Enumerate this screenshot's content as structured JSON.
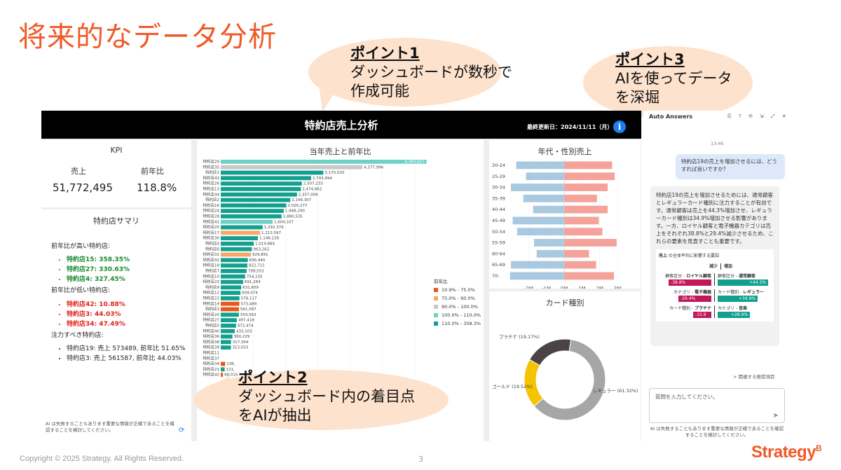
{
  "slide": {
    "title": "将来的なデータ分析",
    "footer_copyright": "Copyright © 2025 Strategy. All Rights Reserved.",
    "page_number": "3",
    "logo_text": "Strategy",
    "logo_mark": "B"
  },
  "callouts": [
    {
      "title": "ポイント1",
      "lines": [
        "ダッシュボードが数秒で",
        "作成可能"
      ]
    },
    {
      "title": "ポイント2",
      "lines": [
        "ダッシュボード内の着目点",
        "をAIが抽出"
      ]
    },
    {
      "title": "ポイント3",
      "lines": [
        "AIを使ってデータ",
        "を深堀"
      ]
    }
  ],
  "dashboard": {
    "title": "特約店売上分析",
    "updated": "最終更新日：2024/11/11（月）",
    "kpi": {
      "title": "KPI",
      "sales_label": "売上",
      "sales_value": "51,772,495",
      "yoy_label": "前年比",
      "yoy_value": "118.8%"
    },
    "summary": {
      "title": "特約店サマリ",
      "high_heading": "前年比が高い特約店:",
      "high_items": [
        "特約店15: 358.35%",
        "特約店27: 330.63%",
        "特約店4: 327.45%"
      ],
      "low_heading": "前年比が低い特約店:",
      "low_items": [
        "特約店42: 10.88%",
        "特約店3: 44.03%",
        "特約店34: 47.49%"
      ],
      "focus_heading": "注力すべき特約店:",
      "focus_items": [
        "特約店19: 売上 573489, 前年比 51.65%",
        "特約店3: 売上 561587, 前年比 44.03%"
      ],
      "disclaimer": "AI は失敗することもあります重要な情報が正確であることを確認することを検討してください。"
    },
    "colors": {
      "red": "#e8581c",
      "orange": "#f5a86a",
      "gray": "#c8c8c8",
      "lightteal": "#6fd1c6",
      "teal": "#13a08e",
      "male": "#a8c9e0",
      "female": "#f4a29a"
    }
  },
  "chart_data": [
    {
      "type": "bar",
      "orientation": "horizontal",
      "title": "当年売上と前年比",
      "legend_title": "前年比",
      "legend": [
        {
          "label": "10.9% - 75.0%",
          "color": "#e8581c"
        },
        {
          "label": "75.0% - 90.0%",
          "color": "#f5a86a"
        },
        {
          "label": "90.0% - 100.0%",
          "color": "#c8c8c8"
        },
        {
          "label": "100.0% - 110.0%",
          "color": "#6fd1c6"
        },
        {
          "label": "110.0% - 358.3%",
          "color": "#13a08e"
        }
      ],
      "x_ticks": [
        "1M",
        "2M",
        "3M",
        "4M",
        "5M",
        "6M"
      ],
      "xlim": [
        0,
        6500000
      ],
      "bars": [
        {
          "name": "特約店29",
          "value": 6360657,
          "label": "6,360,657",
          "color": "lightteal"
        },
        {
          "name": "特約店35",
          "value": 4377996,
          "label": "4,377,996",
          "color": "gray"
        },
        {
          "name": "特約店1",
          "value": 3170020,
          "label": "3,170,020",
          "color": "teal"
        },
        {
          "name": "特約店43",
          "value": 2793494,
          "label": "2,793,494",
          "color": "teal"
        },
        {
          "name": "特約店26",
          "value": 2507233,
          "label": "2,507,233",
          "color": "teal"
        },
        {
          "name": "特約店13",
          "value": 2474862,
          "label": "2,474,862",
          "color": "teal"
        },
        {
          "name": "特約店44",
          "value": 2357006,
          "label": "2,357,006",
          "color": "teal"
        },
        {
          "name": "特約店2",
          "value": 2149307,
          "label": "2,149,307",
          "color": "teal"
        },
        {
          "name": "特約店16",
          "value": 2026277,
          "label": "2,026,277",
          "color": "teal"
        },
        {
          "name": "特約店24",
          "value": 1948290,
          "label": "1,948,290",
          "color": "teal"
        },
        {
          "name": "特約店28",
          "value": 1880535,
          "label": "1,880,535",
          "color": "teal"
        },
        {
          "name": "特約店41",
          "value": 1604107,
          "label": "1,604,107",
          "color": "lightteal"
        },
        {
          "name": "特約店25",
          "value": 1292379,
          "label": "1,292,379",
          "color": "teal"
        },
        {
          "name": "特約店17",
          "value": 1213597,
          "label": "1,213,597",
          "color": "orange"
        },
        {
          "name": "特約店30",
          "value": 1148139,
          "label": "1,148,139",
          "color": "teal"
        },
        {
          "name": "特約店4",
          "value": 1019884,
          "label": "1,019,884",
          "color": "teal"
        },
        {
          "name": "特約店6",
          "value": 963262,
          "label": "963,262",
          "color": "teal"
        },
        {
          "name": "特約店31",
          "value": 929891,
          "label": "929,891",
          "color": "orange"
        },
        {
          "name": "特約店32",
          "value": 836940,
          "label": "836,940",
          "color": "teal"
        },
        {
          "name": "特約店18",
          "value": 822721,
          "label": "822,721",
          "color": "teal"
        },
        {
          "name": "特約店7",
          "value": 799553,
          "label": "799,553",
          "color": "teal"
        },
        {
          "name": "特約店10",
          "value": 754235,
          "label": "754,235",
          "color": "teal"
        },
        {
          "name": "特約店23",
          "value": 691264,
          "label": "691,264",
          "color": "teal"
        },
        {
          "name": "特約店9",
          "value": 631609,
          "label": "631,609",
          "color": "teal"
        },
        {
          "name": "特約店12",
          "value": 609074,
          "label": "609,074",
          "color": "teal"
        },
        {
          "name": "特約店22",
          "value": 578117,
          "label": "578,117",
          "color": "teal"
        },
        {
          "name": "特約店19",
          "value": 573489,
          "label": "573,489",
          "color": "red"
        },
        {
          "name": "特約店3",
          "value": 561587,
          "label": "561,587",
          "color": "red"
        },
        {
          "name": "特約店20",
          "value": 559563,
          "label": "559,563",
          "color": "teal"
        },
        {
          "name": "特約店27",
          "value": 497418,
          "label": "497,418",
          "color": "teal"
        },
        {
          "name": "特約店5",
          "value": 472474,
          "label": "472,474",
          "color": "teal"
        },
        {
          "name": "特約店40",
          "value": 433103,
          "label": "433,103",
          "color": "teal"
        },
        {
          "name": "特約店36",
          "value": 360229,
          "label": "360,229",
          "color": "teal"
        },
        {
          "name": "特約店38",
          "value": 317304,
          "label": "317,304",
          "color": "teal"
        },
        {
          "name": "特約店39",
          "value": 313033,
          "label": "313,033",
          "color": "teal"
        },
        {
          "name": "特約店11",
          "value": 0,
          "label": "",
          "color": "teal"
        },
        {
          "name": "特約店37",
          "value": 0,
          "label": "",
          "color": "teal"
        },
        {
          "name": "特約店34",
          "value": 136000,
          "label": "136,",
          "color": "red"
        },
        {
          "name": "特約店21",
          "value": 121000,
          "label": "121,",
          "color": "teal"
        },
        {
          "name": "特約店42",
          "value": 68015,
          "label": "68,015",
          "color": "red"
        }
      ]
    },
    {
      "type": "bar",
      "orientation": "horizontal-diverging",
      "title": "年代・性別売上",
      "categories": [
        "20-24",
        "25-29",
        "30-34",
        "35-39",
        "40-44",
        "45-49",
        "50-54",
        "55-59",
        "60-64",
        "65-69",
        "70-"
      ],
      "x_ticks": [
        "-2M",
        "-1M",
        "0M",
        "1M",
        "2M",
        "3M"
      ],
      "xlim": [
        -3000000,
        3000000
      ],
      "series": [
        {
          "values": [
            -2700000,
            -2150000,
            -3000000,
            -2300000,
            -1750000,
            -2900000,
            -2650000,
            -1700000,
            -1550000,
            -3000000,
            -3050000
          ]
        },
        {
          "values": [
            2700000,
            2850000,
            2450000,
            1850000,
            2450000,
            1950000,
            2150000,
            2950000,
            1400000,
            1800000,
            2800000
          ]
        }
      ]
    },
    {
      "type": "pie",
      "title": "カード種別",
      "slices": [
        {
          "label": "レギュラー (61.32%)",
          "value": 61.32,
          "color": "#a6a6a6"
        },
        {
          "label": "ゴールド (19.52%)",
          "value": 19.52,
          "color": "#f5c400"
        },
        {
          "label": "プラチナ (19.17%)",
          "value": 19.17,
          "color": "#4a4444"
        }
      ]
    }
  ],
  "auto_answers": {
    "title": "Auto Answers",
    "tools": "⎘ ? ⟲ ⇲ ⤢ ✕",
    "time": "13:45",
    "question": "特約店19の売上を増加させるには、どうすれば良いですか？",
    "answer": "特約店19の売上を増加させるためには、通常顧客とレギュラーカード種別に注力することが有効です。通常顧客は売上を44.3%増加させ、レギュラーカード種別は34.9%増加させる影響があります。一方、ロイヤル顧客と電子機器カテゴリは売上をそれぞれ38.8%と29.4%減少させるため、これらの要素を見直すことも重要です。",
    "factor_title_bold": "売上",
    "factor_title_rest": " の全体平均に影響する要因",
    "decrease_label": "減少",
    "increase_label": "増加",
    "factors": [
      {
        "neg_label": "顧客区分 - ",
        "neg_bold": "ロイヤル顧客",
        "neg_value": "-38.8%",
        "neg_w": 0.78,
        "pos_label": "顧客区分 - ",
        "pos_bold": "通常顧客",
        "pos_value": "+44.3%",
        "pos_w": 0.95
      },
      {
        "neg_label": "カテゴリ - ",
        "neg_bold": "電子機器",
        "neg_value": "-29.4%",
        "neg_w": 0.6,
        "pos_label": "カード種別 - ",
        "pos_bold": "レギュラー",
        "pos_value": "+34.9%",
        "pos_w": 0.75
      },
      {
        "neg_label": "カード種別 - ",
        "neg_bold": "プラチナ",
        "neg_value": "-15.9",
        "neg_w": 0.33,
        "pos_label": "カテゴリ - ",
        "pos_bold": "音楽",
        "pos_value": "+28.9%",
        "pos_w": 0.6
      }
    ],
    "related": "> 関連する推奨項目",
    "input_placeholder": "質問を入力してください。",
    "disclaimer": "AI は失敗することもあります重要な情報が正確であることを確認することを検討してください。"
  }
}
